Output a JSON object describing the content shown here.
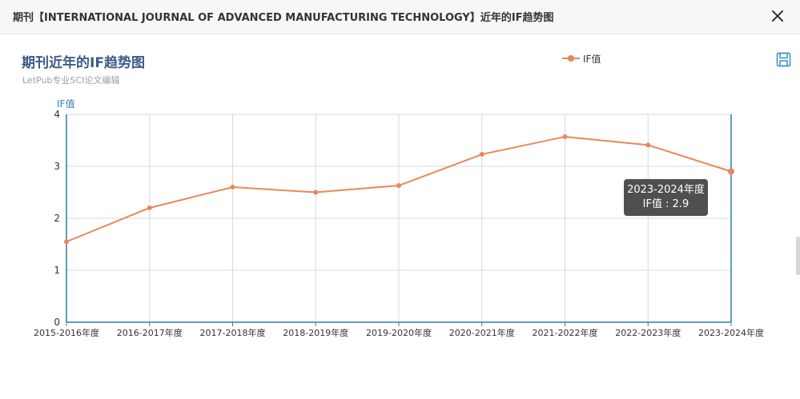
{
  "dialog": {
    "title": "期刊【INTERNATIONAL JOURNAL OF ADVANCED MANUFACTURING TECHNOLOGY】近年的IF趋势图",
    "close_icon": "close-icon"
  },
  "toolbox": {
    "save_icon": "save-as-image-icon"
  },
  "colors": {
    "series": "#e9875a",
    "axis": "#2f7fa3",
    "title": "#3c5a8c",
    "grid": "#d9d9d9"
  },
  "tooltip": {
    "line1": "2023-2024年度",
    "line2": "IF值 : 2.9"
  },
  "chart_data": {
    "type": "line",
    "title": "期刊近年的IF趋势图",
    "subtitle": "LetPub专业SCI论文编辑",
    "ylabel": "IF值",
    "xlabel": "",
    "legend": "top-right",
    "grid": true,
    "categories": [
      "2015-2016年度",
      "2016-2017年度",
      "2017-2018年度",
      "2018-2019年度",
      "2019-2020年度",
      "2020-2021年度",
      "2021-2022年度",
      "2022-2023年度",
      "2023-2024年度"
    ],
    "series": [
      {
        "name": "IF值",
        "values": [
          1.55,
          2.2,
          2.6,
          2.5,
          2.63,
          3.23,
          3.57,
          3.41,
          2.9
        ]
      }
    ],
    "ylim": [
      0,
      4
    ],
    "yticks": [
      "0",
      "1",
      "2",
      "3",
      "4"
    ]
  }
}
